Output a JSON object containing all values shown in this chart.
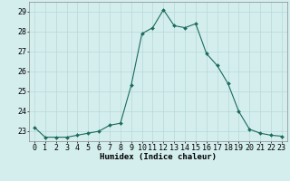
{
  "x": [
    0,
    1,
    2,
    3,
    4,
    5,
    6,
    7,
    8,
    9,
    10,
    11,
    12,
    13,
    14,
    15,
    16,
    17,
    18,
    19,
    20,
    21,
    22,
    23
  ],
  "y": [
    23.2,
    22.7,
    22.7,
    22.7,
    22.8,
    22.9,
    23.0,
    23.3,
    23.4,
    25.3,
    27.9,
    28.2,
    29.1,
    28.3,
    28.2,
    28.4,
    26.9,
    26.3,
    25.4,
    24.0,
    23.1,
    22.9,
    22.8,
    22.75
  ],
  "line_color": "#1a6b5a",
  "marker_color": "#1a6b5a",
  "bg_color": "#d4eeee",
  "grid_color": "#b8d8d8",
  "xlabel": "Humidex (Indice chaleur)",
  "ylim": [
    22.5,
    29.5
  ],
  "xlim": [
    -0.5,
    23.5
  ],
  "yticks": [
    23,
    24,
    25,
    26,
    27,
    28,
    29
  ],
  "xticks": [
    0,
    1,
    2,
    3,
    4,
    5,
    6,
    7,
    8,
    9,
    10,
    11,
    12,
    13,
    14,
    15,
    16,
    17,
    18,
    19,
    20,
    21,
    22,
    23
  ],
  "label_fontsize": 6.5,
  "tick_fontsize": 6.0
}
